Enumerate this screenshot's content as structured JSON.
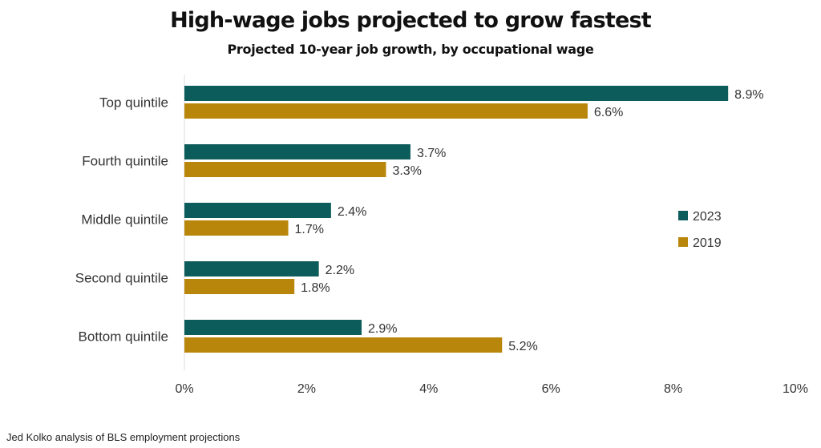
{
  "chart_data": {
    "type": "bar",
    "orientation": "horizontal",
    "title": "High-wage jobs projected to grow fastest",
    "subtitle": "Projected 10-year job growth, by occupational wage",
    "categories": [
      "Top quintile",
      "Fourth quintile",
      "Middle quintile",
      "Second quintile",
      "Bottom quintile"
    ],
    "series": [
      {
        "name": "2023",
        "color": "#0b5c5a",
        "values": [
          8.9,
          3.7,
          2.4,
          2.2,
          2.9
        ],
        "labels": [
          "8.9%",
          "3.7%",
          "2.4%",
          "2.2%",
          "2.9%"
        ]
      },
      {
        "name": "2019",
        "color": "#b8860b",
        "values": [
          6.6,
          3.3,
          1.7,
          1.8,
          5.2
        ],
        "labels": [
          "6.6%",
          "3.3%",
          "1.7%",
          "1.8%",
          "5.2%"
        ]
      }
    ],
    "xlim": [
      0,
      10
    ],
    "xticks": [
      0,
      2,
      4,
      6,
      8,
      10
    ],
    "xtick_labels": [
      "0%",
      "2%",
      "4%",
      "6%",
      "8%",
      "10%"
    ],
    "xlabel": "",
    "ylabel": "",
    "grid": false,
    "legend_position": "right"
  },
  "source": "Jed Kolko analysis of BLS employment projections"
}
